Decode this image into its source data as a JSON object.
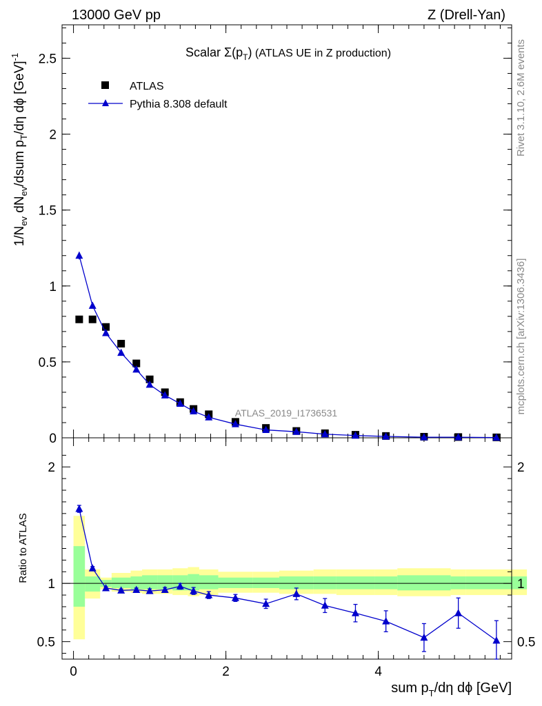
{
  "header": {
    "left": "13000 GeV pp",
    "right": "Z (Drell-Yan)"
  },
  "side": {
    "rivet": "Rivet 3.1.10,  2.6M events",
    "source": "mcplots.cern.ch [arXiv:1306.3436]"
  },
  "title": {
    "prefix": "Scalar ",
    "sigma": "Σ(p",
    "sub": "T",
    "close": ")",
    "rest": " (ATLAS UE in Z production)"
  },
  "legend": {
    "data_label": "ATLAS",
    "mc_label": "Pythia 8.308 default"
  },
  "watermark": "ATLAS_2019_I1736531",
  "colors": {
    "data": "#000000",
    "mc": "#0000cc",
    "band_outer": "#ffff99",
    "band_inner": "#99ff99"
  },
  "chart_data": [
    {
      "type": "scatter",
      "panel": "main",
      "ylabel": "1/N_ev dN_ev/dsum p_T/dη dϕ [GeV]^-1",
      "xlim": [
        -0.15,
        5.75
      ],
      "ylim": [
        0,
        2.72
      ],
      "yticks": [
        0,
        0.5,
        1,
        1.5,
        2,
        2.5
      ],
      "yticklabels": [
        "0",
        "0.5",
        "1",
        "1.5",
        "2",
        "2.5"
      ],
      "series": [
        {
          "name": "ATLAS",
          "marker": "square",
          "x": [
            0.075,
            0.25,
            0.425,
            0.625,
            0.825,
            1.0,
            1.2,
            1.4,
            1.575,
            1.775,
            2.125,
            2.525,
            2.925,
            3.3,
            3.7,
            4.1,
            4.6,
            5.05,
            5.55
          ],
          "y": [
            0.78,
            0.78,
            0.73,
            0.62,
            0.49,
            0.385,
            0.3,
            0.235,
            0.19,
            0.155,
            0.105,
            0.065,
            0.045,
            0.03,
            0.02,
            0.012,
            0.007,
            0.005,
            0.003
          ]
        },
        {
          "name": "Pythia 8.308 default",
          "marker": "triangle",
          "x": [
            0.075,
            0.25,
            0.425,
            0.625,
            0.825,
            1.0,
            1.2,
            1.4,
            1.575,
            1.775,
            2.125,
            2.525,
            2.925,
            3.3,
            3.7,
            4.1,
            4.6,
            5.05,
            5.55
          ],
          "y": [
            1.2,
            0.87,
            0.69,
            0.56,
            0.45,
            0.35,
            0.28,
            0.225,
            0.175,
            0.135,
            0.09,
            0.052,
            0.04,
            0.024,
            0.015,
            0.009,
            0.004,
            0.004,
            0.0015
          ],
          "yerr": [
            0.025,
            0.015,
            0.012,
            0.01,
            0.008,
            0.006,
            0.005,
            0.004,
            0.004,
            0.003,
            0.002,
            0.002,
            0.002,
            0.001,
            0.001,
            0.001,
            0.001,
            0.001,
            0.001
          ]
        }
      ]
    },
    {
      "type": "line",
      "panel": "ratio",
      "xlabel": "sum p_T/dη dϕ [GeV]",
      "ylabel": "Ratio to ATLAS",
      "xlim": [
        -0.15,
        5.75
      ],
      "ylim": [
        0.35,
        2.25
      ],
      "xticks": [
        0,
        2,
        4
      ],
      "xticklabels": [
        "0",
        "2",
        "4"
      ],
      "yticks": [
        0.5,
        1,
        2
      ],
      "yticklabels": [
        "0.5",
        "1",
        "2"
      ],
      "bins": [
        [
          0.0,
          0.15
        ],
        [
          0.15,
          0.35
        ],
        [
          0.35,
          0.5
        ],
        [
          0.5,
          0.75
        ],
        [
          0.75,
          0.9
        ],
        [
          0.9,
          1.1
        ],
        [
          1.1,
          1.3
        ],
        [
          1.3,
          1.5
        ],
        [
          1.5,
          1.65
        ],
        [
          1.65,
          1.9
        ],
        [
          1.9,
          2.35
        ],
        [
          2.35,
          2.7
        ],
        [
          2.7,
          3.15
        ],
        [
          3.15,
          3.45
        ],
        [
          3.45,
          3.95
        ],
        [
          3.95,
          4.25
        ],
        [
          4.25,
          4.95
        ],
        [
          4.95,
          5.15
        ],
        [
          5.15,
          5.95
        ]
      ],
      "band_outer": [
        [
          0.52,
          1.58
        ],
        [
          0.87,
          1.12
        ],
        [
          0.95,
          1.05
        ],
        [
          0.93,
          1.09
        ],
        [
          0.92,
          1.11
        ],
        [
          0.91,
          1.12
        ],
        [
          0.91,
          1.12
        ],
        [
          0.9,
          1.13
        ],
        [
          0.89,
          1.14
        ],
        [
          0.9,
          1.12
        ],
        [
          0.92,
          1.1
        ],
        [
          0.92,
          1.1
        ],
        [
          0.91,
          1.11
        ],
        [
          0.91,
          1.12
        ],
        [
          0.9,
          1.12
        ],
        [
          0.9,
          1.12
        ],
        [
          0.89,
          1.13
        ],
        [
          0.9,
          1.12
        ],
        [
          0.9,
          1.12
        ]
      ],
      "band_inner": [
        [
          0.8,
          1.32
        ],
        [
          0.93,
          1.06
        ],
        [
          0.97,
          1.03
        ],
        [
          0.96,
          1.05
        ],
        [
          0.95,
          1.06
        ],
        [
          0.95,
          1.07
        ],
        [
          0.95,
          1.07
        ],
        [
          0.94,
          1.07
        ],
        [
          0.94,
          1.08
        ],
        [
          0.95,
          1.07
        ],
        [
          0.96,
          1.05
        ],
        [
          0.96,
          1.05
        ],
        [
          0.95,
          1.06
        ],
        [
          0.95,
          1.06
        ],
        [
          0.95,
          1.06
        ],
        [
          0.95,
          1.06
        ],
        [
          0.94,
          1.07
        ],
        [
          0.95,
          1.06
        ],
        [
          0.95,
          1.06
        ]
      ],
      "series": [
        {
          "name": "Pythia 8.308 default / ATLAS",
          "x": [
            0.075,
            0.25,
            0.425,
            0.625,
            0.825,
            1.0,
            1.2,
            1.4,
            1.575,
            1.775,
            2.125,
            2.525,
            2.925,
            3.3,
            3.7,
            4.1,
            4.6,
            5.05,
            5.55
          ],
          "y": [
            1.64,
            1.13,
            0.96,
            0.94,
            0.945,
            0.935,
            0.945,
            0.975,
            0.935,
            0.9,
            0.875,
            0.825,
            0.91,
            0.81,
            0.745,
            0.675,
            0.535,
            0.745,
            0.51
          ],
          "yerr": [
            0.03,
            0.015,
            0.01,
            0.012,
            0.015,
            0.018,
            0.02,
            0.025,
            0.03,
            0.03,
            0.03,
            0.04,
            0.05,
            0.06,
            0.075,
            0.09,
            0.12,
            0.13,
            0.17
          ]
        }
      ]
    }
  ]
}
